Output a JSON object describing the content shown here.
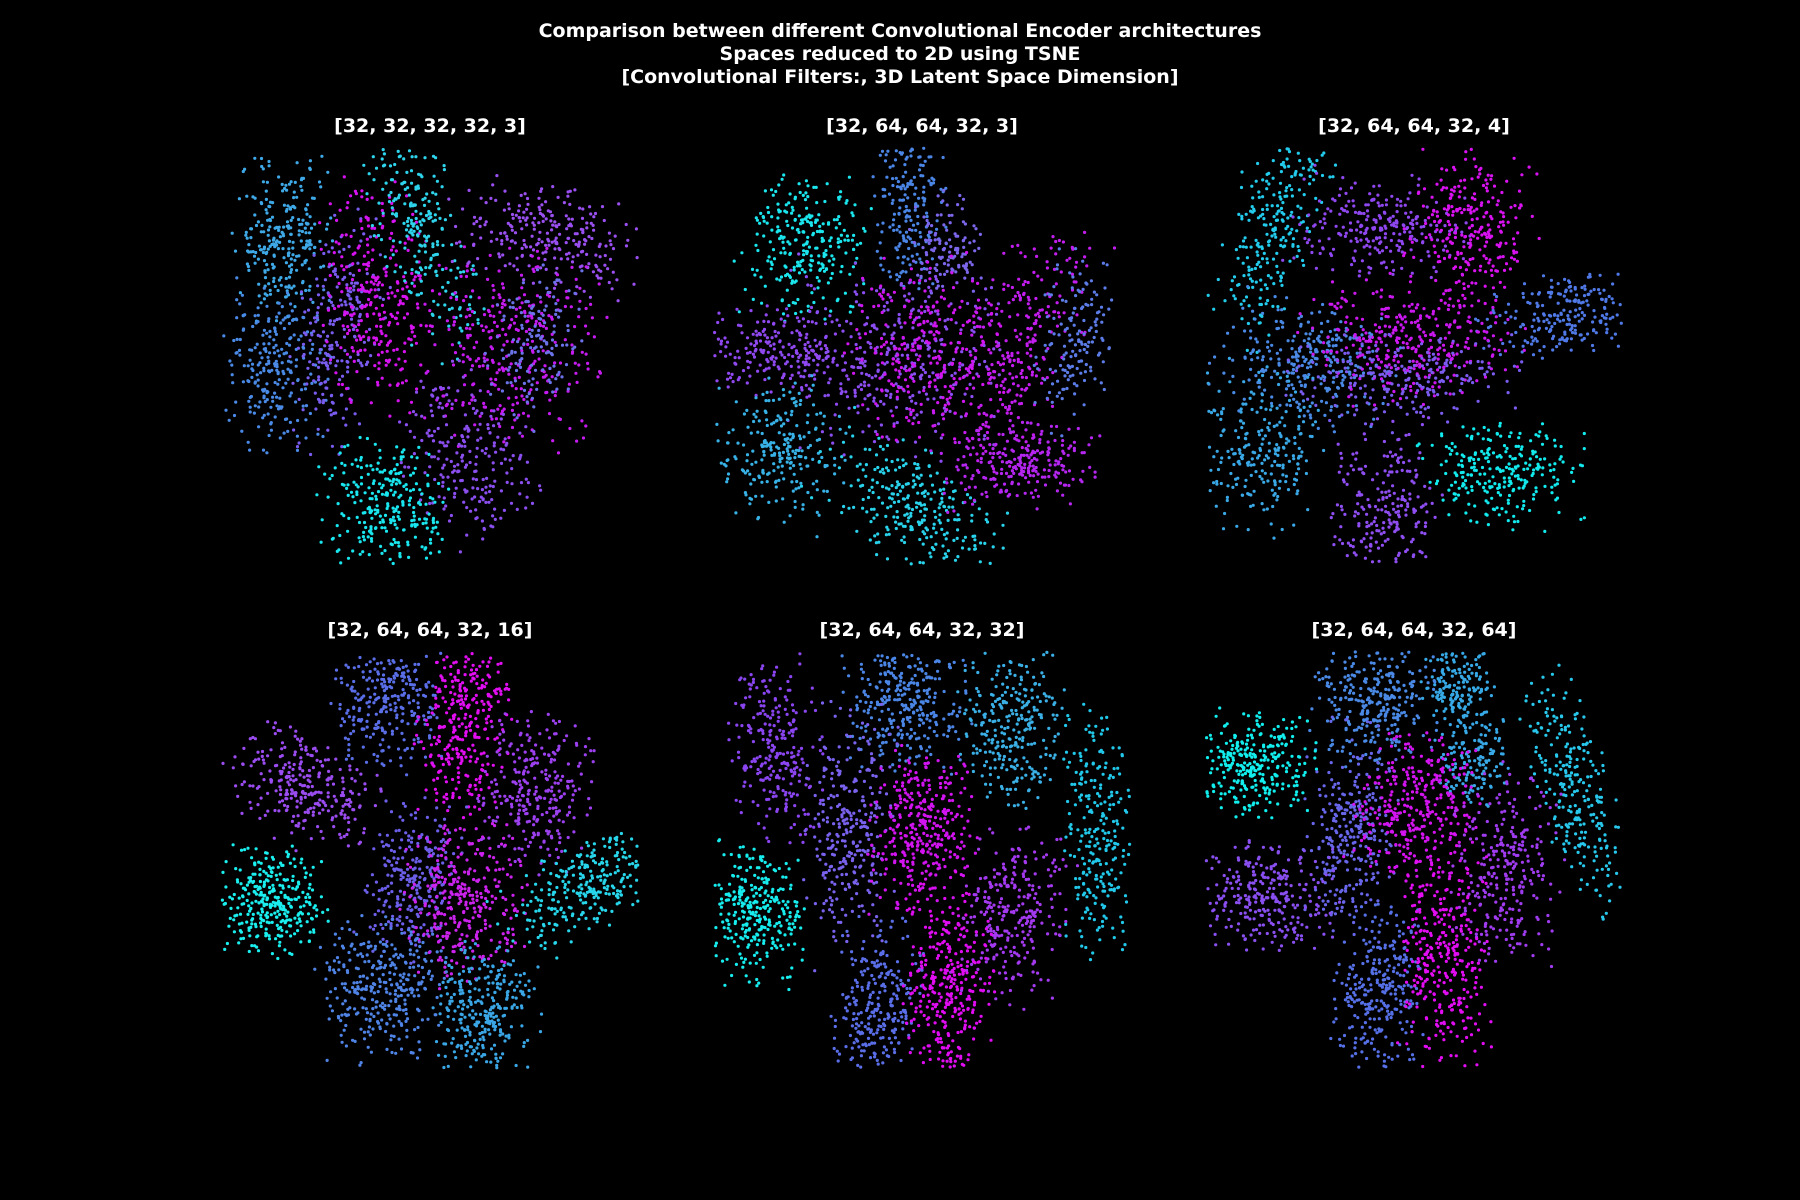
{
  "figure": {
    "title_lines": [
      "Comparison between different Convolutional Encoder architectures",
      "Spaces reduced to 2D using TSNE",
      "[Convolutional Filters:, 3D Latent Space Dimension]"
    ],
    "background": "#000000"
  },
  "chart_data": [
    {
      "type": "scatter",
      "title": "[32, 32, 32, 32, 3]",
      "xlabel": "",
      "ylabel": "",
      "axes_visible": false,
      "colormap": "cool",
      "clusters": [
        {
          "cx": 0.15,
          "cy": 0.22,
          "sx": 0.055,
          "sy": 0.09,
          "rot": 0.1,
          "color": "#3fa9e8",
          "n": 260
        },
        {
          "cx": 0.13,
          "cy": 0.53,
          "sx": 0.06,
          "sy": 0.09,
          "rot": 0.1,
          "color": "#4a8ae6",
          "n": 240
        },
        {
          "cx": 0.28,
          "cy": 0.45,
          "sx": 0.05,
          "sy": 0.14,
          "rot": 0.15,
          "color": "#7a5cf0",
          "n": 230
        },
        {
          "cx": 0.38,
          "cy": 0.36,
          "sx": 0.06,
          "sy": 0.13,
          "rot": -0.05,
          "color": "#d613f0",
          "n": 280
        },
        {
          "cx": 0.47,
          "cy": 0.18,
          "sx": 0.05,
          "sy": 0.16,
          "rot": -0.35,
          "color": "#2ed4ec",
          "n": 260
        },
        {
          "cx": 0.8,
          "cy": 0.22,
          "sx": 0.12,
          "sy": 0.06,
          "rot": 0.2,
          "color": "#9a4ff0",
          "n": 260
        },
        {
          "cx": 0.69,
          "cy": 0.48,
          "sx": 0.1,
          "sy": 0.11,
          "rot": 0.1,
          "color": "#c61bf0",
          "n": 320
        },
        {
          "cx": 0.75,
          "cy": 0.47,
          "sx": 0.05,
          "sy": 0.09,
          "rot": 0.2,
          "color": "#6b73ea",
          "n": 140
        },
        {
          "cx": 0.59,
          "cy": 0.74,
          "sx": 0.07,
          "sy": 0.1,
          "rot": -0.4,
          "color": "#8b4ff0",
          "n": 230
        },
        {
          "cx": 0.39,
          "cy": 0.86,
          "sx": 0.07,
          "sy": 0.08,
          "rot": 0.0,
          "color": "#19e6ee",
          "n": 280
        }
      ]
    },
    {
      "type": "scatter",
      "title": "[32, 64, 64, 32, 3]",
      "xlabel": "",
      "ylabel": "",
      "axes_visible": false,
      "colormap": "cool",
      "clusters": [
        {
          "cx": 0.22,
          "cy": 0.24,
          "sx": 0.07,
          "sy": 0.08,
          "rot": 0.2,
          "color": "#1be6ee",
          "n": 270
        },
        {
          "cx": 0.47,
          "cy": 0.14,
          "sx": 0.04,
          "sy": 0.11,
          "rot": 0.0,
          "color": "#4b86e6",
          "n": 200
        },
        {
          "cx": 0.56,
          "cy": 0.24,
          "sx": 0.04,
          "sy": 0.06,
          "rot": 0.0,
          "color": "#7b66ec",
          "n": 120
        },
        {
          "cx": 0.16,
          "cy": 0.49,
          "sx": 0.11,
          "sy": 0.05,
          "rot": 0.1,
          "color": "#9048f0",
          "n": 240
        },
        {
          "cx": 0.44,
          "cy": 0.5,
          "sx": 0.12,
          "sy": 0.11,
          "rot": 0.0,
          "color": "#8a4ef2",
          "n": 330
        },
        {
          "cx": 0.52,
          "cy": 0.48,
          "sx": 0.09,
          "sy": 0.1,
          "rot": 0.0,
          "color": "#d015f0",
          "n": 260
        },
        {
          "cx": 0.73,
          "cy": 0.48,
          "sx": 0.06,
          "sy": 0.14,
          "rot": 0.4,
          "color": "#c41df0",
          "n": 260
        },
        {
          "cx": 0.86,
          "cy": 0.47,
          "sx": 0.04,
          "sy": 0.1,
          "rot": 0.1,
          "color": "#5c7ce8",
          "n": 150
        },
        {
          "cx": 0.16,
          "cy": 0.73,
          "sx": 0.07,
          "sy": 0.08,
          "rot": 0.0,
          "color": "#38b2e6",
          "n": 240
        },
        {
          "cx": 0.47,
          "cy": 0.86,
          "sx": 0.11,
          "sy": 0.06,
          "rot": 0.6,
          "color": "#29d3ec",
          "n": 280
        },
        {
          "cx": 0.73,
          "cy": 0.76,
          "sx": 0.09,
          "sy": 0.05,
          "rot": -0.1,
          "color": "#b526f0",
          "n": 230
        }
      ]
    },
    {
      "type": "scatter",
      "title": "[32, 64, 64, 32, 4]",
      "xlabel": "",
      "ylabel": "",
      "axes_visible": false,
      "colormap": "cool",
      "clusters": [
        {
          "cx": 0.17,
          "cy": 0.18,
          "sx": 0.05,
          "sy": 0.14,
          "rot": 0.25,
          "color": "#23cbec",
          "n": 260
        },
        {
          "cx": 0.42,
          "cy": 0.19,
          "sx": 0.1,
          "sy": 0.06,
          "rot": 0.1,
          "color": "#8f47f0",
          "n": 250
        },
        {
          "cx": 0.64,
          "cy": 0.19,
          "sx": 0.07,
          "sy": 0.09,
          "rot": 0.2,
          "color": "#d812f0",
          "n": 260
        },
        {
          "cx": 0.85,
          "cy": 0.4,
          "sx": 0.09,
          "sy": 0.05,
          "rot": -0.2,
          "color": "#5079e8",
          "n": 220
        },
        {
          "cx": 0.24,
          "cy": 0.52,
          "sx": 0.1,
          "sy": 0.07,
          "rot": 0.2,
          "color": "#4a8ae6",
          "n": 280
        },
        {
          "cx": 0.49,
          "cy": 0.46,
          "sx": 0.12,
          "sy": 0.07,
          "rot": 0.0,
          "color": "#cc18f0",
          "n": 320
        },
        {
          "cx": 0.48,
          "cy": 0.55,
          "sx": 0.13,
          "sy": 0.05,
          "rot": 0.0,
          "color": "#7b5cf0",
          "n": 220
        },
        {
          "cx": 0.13,
          "cy": 0.72,
          "sx": 0.07,
          "sy": 0.09,
          "rot": 0.2,
          "color": "#3aa8e6",
          "n": 240
        },
        {
          "cx": 0.43,
          "cy": 0.87,
          "sx": 0.06,
          "sy": 0.1,
          "rot": 0.0,
          "color": "#8f4ef2",
          "n": 240
        },
        {
          "cx": 0.71,
          "cy": 0.78,
          "sx": 0.09,
          "sy": 0.06,
          "rot": 0.0,
          "color": "#12eaee",
          "n": 260
        }
      ]
    },
    {
      "type": "scatter",
      "title": "[32, 64, 64, 32, 16]",
      "xlabel": "",
      "ylabel": "",
      "axes_visible": false,
      "colormap": "cool",
      "clusters": [
        {
          "cx": 0.4,
          "cy": 0.12,
          "sx": 0.06,
          "sy": 0.08,
          "rot": 0.0,
          "color": "#5a6ee8",
          "n": 280
        },
        {
          "cx": 0.58,
          "cy": 0.18,
          "sx": 0.05,
          "sy": 0.11,
          "rot": 0.1,
          "color": "#e20ef2",
          "n": 320
        },
        {
          "cx": 0.2,
          "cy": 0.33,
          "sx": 0.09,
          "sy": 0.06,
          "rot": 0.55,
          "color": "#9a4cf0",
          "n": 280
        },
        {
          "cx": 0.75,
          "cy": 0.34,
          "sx": 0.06,
          "sy": 0.09,
          "rot": 0.1,
          "color": "#9c40f0",
          "n": 280
        },
        {
          "cx": 0.46,
          "cy": 0.54,
          "sx": 0.05,
          "sy": 0.09,
          "rot": 0.25,
          "color": "#6c5fea",
          "n": 260
        },
        {
          "cx": 0.58,
          "cy": 0.6,
          "sx": 0.07,
          "sy": 0.09,
          "rot": 0.0,
          "color": "#cc22ee",
          "n": 320
        },
        {
          "cx": 0.12,
          "cy": 0.6,
          "sx": 0.06,
          "sy": 0.06,
          "rot": 0.0,
          "color": "#1beeee",
          "n": 320
        },
        {
          "cx": 0.87,
          "cy": 0.56,
          "sx": 0.1,
          "sy": 0.05,
          "rot": -0.55,
          "color": "#28d6ec",
          "n": 280
        },
        {
          "cx": 0.38,
          "cy": 0.81,
          "sx": 0.07,
          "sy": 0.08,
          "rot": 0.0,
          "color": "#4f84e6",
          "n": 320
        },
        {
          "cx": 0.63,
          "cy": 0.86,
          "sx": 0.06,
          "sy": 0.08,
          "rot": 0.1,
          "color": "#3aa6e6",
          "n": 300
        }
      ]
    },
    {
      "type": "scatter",
      "title": "[32, 64, 64, 32, 32]",
      "xlabel": "",
      "ylabel": "",
      "axes_visible": false,
      "colormap": "cool",
      "clusters": [
        {
          "cx": 0.15,
          "cy": 0.23,
          "sx": 0.05,
          "sy": 0.11,
          "rot": 0.0,
          "color": "#8a45f0",
          "n": 260
        },
        {
          "cx": 0.46,
          "cy": 0.13,
          "sx": 0.07,
          "sy": 0.08,
          "rot": 0.0,
          "color": "#4b86e6",
          "n": 320
        },
        {
          "cx": 0.71,
          "cy": 0.18,
          "sx": 0.06,
          "sy": 0.09,
          "rot": 0.0,
          "color": "#3ab0e6",
          "n": 280
        },
        {
          "cx": 0.33,
          "cy": 0.42,
          "sx": 0.05,
          "sy": 0.13,
          "rot": 0.05,
          "color": "#7a62ee",
          "n": 300
        },
        {
          "cx": 0.5,
          "cy": 0.43,
          "sx": 0.06,
          "sy": 0.09,
          "rot": 0.0,
          "color": "#d214f0",
          "n": 340
        },
        {
          "cx": 0.92,
          "cy": 0.44,
          "sx": 0.04,
          "sy": 0.14,
          "rot": -0.05,
          "color": "#22c8ea",
          "n": 260
        },
        {
          "cx": 0.11,
          "cy": 0.63,
          "sx": 0.05,
          "sy": 0.08,
          "rot": 0.0,
          "color": "#17ecee",
          "n": 300
        },
        {
          "cx": 0.72,
          "cy": 0.63,
          "sx": 0.06,
          "sy": 0.1,
          "rot": 0.1,
          "color": "#a43af0",
          "n": 280
        },
        {
          "cx": 0.4,
          "cy": 0.86,
          "sx": 0.05,
          "sy": 0.1,
          "rot": 0.1,
          "color": "#5a6ee8",
          "n": 280
        },
        {
          "cx": 0.56,
          "cy": 0.8,
          "sx": 0.05,
          "sy": 0.12,
          "rot": 0.05,
          "color": "#e00cf2",
          "n": 340
        }
      ]
    },
    {
      "type": "scatter",
      "title": "[32, 64, 64, 32, 64]",
      "xlabel": "",
      "ylabel": "",
      "axes_visible": false,
      "colormap": "cool",
      "clusters": [
        {
          "cx": 0.41,
          "cy": 0.12,
          "sx": 0.07,
          "sy": 0.07,
          "rot": 0.0,
          "color": "#4a8ae6",
          "n": 300
        },
        {
          "cx": 0.6,
          "cy": 0.09,
          "sx": 0.04,
          "sy": 0.05,
          "rot": 0.0,
          "color": "#36a9e6",
          "n": 160
        },
        {
          "cx": 0.64,
          "cy": 0.25,
          "sx": 0.04,
          "sy": 0.06,
          "rot": 0.0,
          "color": "#38a8e6",
          "n": 160
        },
        {
          "cx": 0.88,
          "cy": 0.33,
          "sx": 0.04,
          "sy": 0.14,
          "rot": -0.3,
          "color": "#28c8ec",
          "n": 260
        },
        {
          "cx": 0.11,
          "cy": 0.27,
          "sx": 0.07,
          "sy": 0.06,
          "rot": 0.0,
          "color": "#12eeee",
          "n": 320
        },
        {
          "cx": 0.35,
          "cy": 0.43,
          "sx": 0.05,
          "sy": 0.12,
          "rot": 0.05,
          "color": "#6866ea",
          "n": 300
        },
        {
          "cx": 0.51,
          "cy": 0.38,
          "sx": 0.07,
          "sy": 0.08,
          "rot": 0.3,
          "color": "#d414f0",
          "n": 330
        },
        {
          "cx": 0.72,
          "cy": 0.52,
          "sx": 0.06,
          "sy": 0.11,
          "rot": 0.1,
          "color": "#a03cf0",
          "n": 280
        },
        {
          "cx": 0.15,
          "cy": 0.59,
          "sx": 0.08,
          "sy": 0.06,
          "rot": 0.0,
          "color": "#8a4ff0",
          "n": 280
        },
        {
          "cx": 0.42,
          "cy": 0.82,
          "sx": 0.05,
          "sy": 0.1,
          "rot": 0.1,
          "color": "#5670e8",
          "n": 290
        },
        {
          "cx": 0.57,
          "cy": 0.74,
          "sx": 0.05,
          "sy": 0.12,
          "rot": 0.0,
          "color": "#e20df2",
          "n": 330
        }
      ]
    }
  ]
}
